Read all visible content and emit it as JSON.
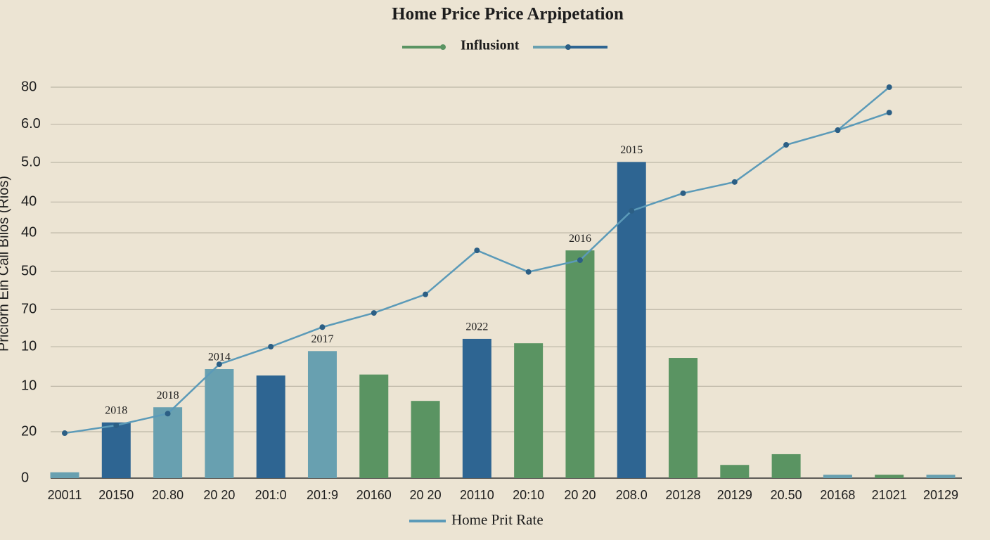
{
  "chart_data": {
    "type": "bar",
    "title": "Home Price Price Arpipetation",
    "y_label": "Priciorn Ein Call Bilos (Rios)",
    "categories": [
      "20011",
      "20150",
      "20.80",
      "20 20",
      "201:0",
      "201:9",
      "20160",
      "20 20",
      "20110",
      "20:10",
      "20 20",
      "208.0",
      "20128",
      "20129",
      "20.50",
      "20168",
      "21021",
      "20129"
    ],
    "series": [
      {
        "name": "Influsiont",
        "type": "bar",
        "color": "#5a9462",
        "colors": [
          "#68a0b0",
          "#2e6592",
          "#68a0b0",
          "#68a0b0",
          "#2e6592",
          "#68a0b0",
          "#5a9462",
          "#5a9462",
          "#2e6592",
          "#5a9462",
          "#5a9462",
          "#2e6592",
          "#5a9462",
          "#5a9462",
          "#5a9462",
          "#68a0b0",
          "#5a9462",
          "#68a0b0"
        ],
        "values": [
          1.2,
          11.4,
          14.5,
          22.3,
          21.0,
          26.0,
          21.2,
          15.8,
          28.5,
          27.6,
          46.6,
          64.7,
          24.6,
          2.7,
          4.9,
          0.7,
          0.7,
          0.7
        ],
        "bar_labels": [
          null,
          "2018",
          "2018",
          "2014",
          null,
          "2017",
          null,
          null,
          "2022",
          null,
          "2016",
          "2015",
          null,
          null,
          null,
          null,
          null,
          null
        ]
      },
      {
        "name": "Home Prit Rate",
        "type": "line",
        "color": "#5b9ab8",
        "values": [
          9.2,
          10.8,
          13.2,
          23.3,
          26.9,
          30.9,
          33.8,
          37.6,
          46.6,
          42.2,
          44.6,
          54.7,
          58.3,
          60.6,
          68.2,
          71.2,
          80,
          null
        ]
      },
      {
        "type": "line",
        "color": "#5b9ab8",
        "values": [
          null,
          null,
          null,
          null,
          null,
          null,
          null,
          null,
          null,
          null,
          null,
          null,
          null,
          null,
          null,
          71.2,
          74.8,
          null
        ]
      }
    ],
    "ylim": [
      0,
      80
    ],
    "yticks": [
      80,
      {
        "value": 72.4,
        "label": "6.0"
      },
      {
        "value": 64.6,
        "label": "5.0"
      },
      {
        "value": 56.5,
        "label": "40"
      },
      {
        "value": 50.2,
        "label": "40"
      },
      {
        "value": 42.3,
        "label": "50"
      },
      {
        "value": 34.5,
        "label": "70"
      },
      {
        "value": 26.9,
        "label": "10"
      },
      {
        "value": 18.8,
        "label": "10"
      },
      {
        "value": 9.5,
        "label": "20"
      },
      0
    ],
    "grid": true
  }
}
